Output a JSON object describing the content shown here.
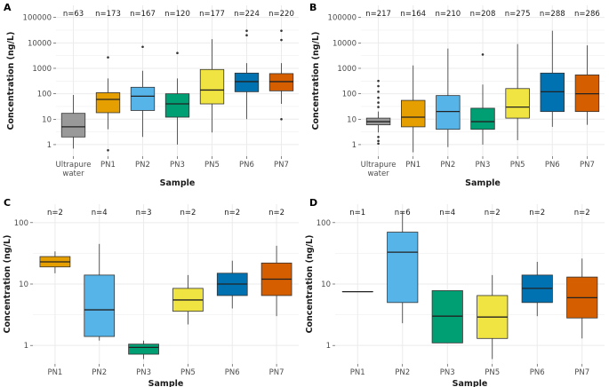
{
  "colors": {
    "grid": "#ebebeb",
    "panel": "#ffffff",
    "Ultrapure water": "#999999",
    "PN1": "#E69F00",
    "PN2": "#56B4E9",
    "PN3": "#009E73",
    "PN5": "#F0E442",
    "PN6": "#0072B2",
    "PN7": "#D55E00"
  },
  "chart_data": [
    {
      "label": "A",
      "type": "boxplot",
      "scale": "log10",
      "xlabel": "Sample",
      "ylabel": "Concentration (ng/L)",
      "yticks": [
        "1",
        "10",
        "100",
        "1000",
        "10000",
        "100000"
      ],
      "ylim": [
        0.35,
        300000
      ],
      "groups": [
        {
          "name": "Ultrapure water",
          "n": "n=63",
          "q1": 2.0,
          "median": 5.0,
          "q3": 17,
          "wlo": 0.7,
          "whi": 90,
          "outliers": []
        },
        {
          "name": "PN1",
          "n": "n=173",
          "q1": 18,
          "median": 60,
          "q3": 110,
          "wlo": 4,
          "whi": 400,
          "outliers": [
            2700,
            0.6
          ]
        },
        {
          "name": "PN2",
          "n": "n=167",
          "q1": 22,
          "median": 80,
          "q3": 180,
          "wlo": 2,
          "whi": 800,
          "outliers": [
            7000
          ]
        },
        {
          "name": "PN3",
          "n": "n=120",
          "q1": 12,
          "median": 40,
          "q3": 100,
          "wlo": 1,
          "whi": 400,
          "outliers": [
            4000
          ]
        },
        {
          "name": "PN5",
          "n": "n=177",
          "q1": 40,
          "median": 140,
          "q3": 900,
          "wlo": 3,
          "whi": 14000,
          "outliers": []
        },
        {
          "name": "PN6",
          "n": "n=224",
          "q1": 120,
          "median": 300,
          "q3": 650,
          "wlo": 10,
          "whi": 1600,
          "outliers": [
            30000,
            20000
          ]
        },
        {
          "name": "PN7",
          "n": "n=220",
          "q1": 130,
          "median": 300,
          "q3": 620,
          "wlo": 40,
          "whi": 1600,
          "outliers": [
            30000,
            13000,
            10
          ]
        }
      ]
    },
    {
      "label": "B",
      "type": "boxplot",
      "scale": "log10",
      "xlabel": "Sample",
      "ylabel": "Concentration (ng/L)",
      "yticks": [
        "1",
        "10",
        "100",
        "1000",
        "10000",
        "100000"
      ],
      "ylim": [
        0.35,
        300000
      ],
      "groups": [
        {
          "name": "Ultrapure water",
          "n": "n=217",
          "q1": 6,
          "median": 8,
          "q3": 11,
          "wlo": 3,
          "whi": 20,
          "outliers": [
            320,
            200,
            120,
            70,
            45,
            30,
            2,
            1.4,
            1.1
          ]
        },
        {
          "name": "PN1",
          "n": "n=164",
          "q1": 5,
          "median": 12,
          "q3": 55,
          "wlo": 0.5,
          "whi": 1300,
          "outliers": []
        },
        {
          "name": "PN2",
          "n": "n=210",
          "q1": 4,
          "median": 20,
          "q3": 85,
          "wlo": 0.8,
          "whi": 6000,
          "outliers": []
        },
        {
          "name": "PN3",
          "n": "n=208",
          "q1": 4,
          "median": 8,
          "q3": 27,
          "wlo": 1,
          "whi": 230,
          "outliers": [
            3500
          ]
        },
        {
          "name": "PN5",
          "n": "n=275",
          "q1": 11,
          "median": 30,
          "q3": 160,
          "wlo": 1.5,
          "whi": 9000,
          "outliers": []
        },
        {
          "name": "PN6",
          "n": "n=288",
          "q1": 20,
          "median": 120,
          "q3": 650,
          "wlo": 5,
          "whi": 30000,
          "outliers": []
        },
        {
          "name": "PN7",
          "n": "n=286",
          "q1": 20,
          "median": 100,
          "q3": 550,
          "wlo": 6,
          "whi": 8000,
          "outliers": []
        }
      ]
    },
    {
      "label": "C",
      "type": "boxplot",
      "scale": "log10",
      "xlabel": "Sample",
      "ylabel": "Concentration (ng/L)",
      "yticks": [
        "1",
        "10",
        "100"
      ],
      "ylim": [
        0.5,
        200
      ],
      "groups": [
        {
          "name": "PN1",
          "n": "n=2",
          "q1": 19,
          "median": 23,
          "q3": 28,
          "wlo": 15,
          "whi": 34,
          "outliers": []
        },
        {
          "name": "PN2",
          "n": "n=4",
          "q1": 1.4,
          "median": 3.8,
          "q3": 14,
          "wlo": 1.2,
          "whi": 45,
          "outliers": []
        },
        {
          "name": "PN3",
          "n": "n=3",
          "q1": 0.72,
          "median": 0.93,
          "q3": 1.05,
          "wlo": 0.6,
          "whi": 1.2,
          "outliers": []
        },
        {
          "name": "PN5",
          "n": "n=2",
          "q1": 3.6,
          "median": 5.5,
          "q3": 8.5,
          "wlo": 2.2,
          "whi": 14,
          "outliers": []
        },
        {
          "name": "PN6",
          "n": "n=2",
          "q1": 6.5,
          "median": 10,
          "q3": 15,
          "wlo": 4,
          "whi": 24,
          "outliers": []
        },
        {
          "name": "PN7",
          "n": "n=2",
          "q1": 6.5,
          "median": 12,
          "q3": 22,
          "wlo": 3,
          "whi": 42,
          "outliers": []
        }
      ]
    },
    {
      "label": "D",
      "type": "boxplot",
      "scale": "log10",
      "xlabel": "Sample",
      "ylabel": "Concentration (ng/L)",
      "yticks": [
        "1",
        "10",
        "100"
      ],
      "ylim": [
        0.5,
        200
      ],
      "groups": [
        {
          "name": "PN1",
          "n": "n=1",
          "q1": 7.5,
          "median": 7.5,
          "q3": 7.5,
          "wlo": 7.5,
          "whi": 7.5,
          "outliers": []
        },
        {
          "name": "PN2",
          "n": "n=6",
          "q1": 5,
          "median": 33,
          "q3": 70,
          "wlo": 2.3,
          "whi": 150,
          "outliers": []
        },
        {
          "name": "PN3",
          "n": "n=4",
          "q1": 1.1,
          "median": 3,
          "q3": 7.8,
          "wlo": 1.1,
          "whi": 7.8,
          "outliers": []
        },
        {
          "name": "PN5",
          "n": "n=2",
          "q1": 1.3,
          "median": 2.9,
          "q3": 6.5,
          "wlo": 0.6,
          "whi": 14,
          "outliers": []
        },
        {
          "name": "PN6",
          "n": "n=2",
          "q1": 5,
          "median": 8.5,
          "q3": 14,
          "wlo": 3,
          "whi": 23,
          "outliers": []
        },
        {
          "name": "PN7",
          "n": "n=2",
          "q1": 2.8,
          "median": 6,
          "q3": 13,
          "wlo": 1.3,
          "whi": 26,
          "outliers": []
        }
      ]
    }
  ]
}
